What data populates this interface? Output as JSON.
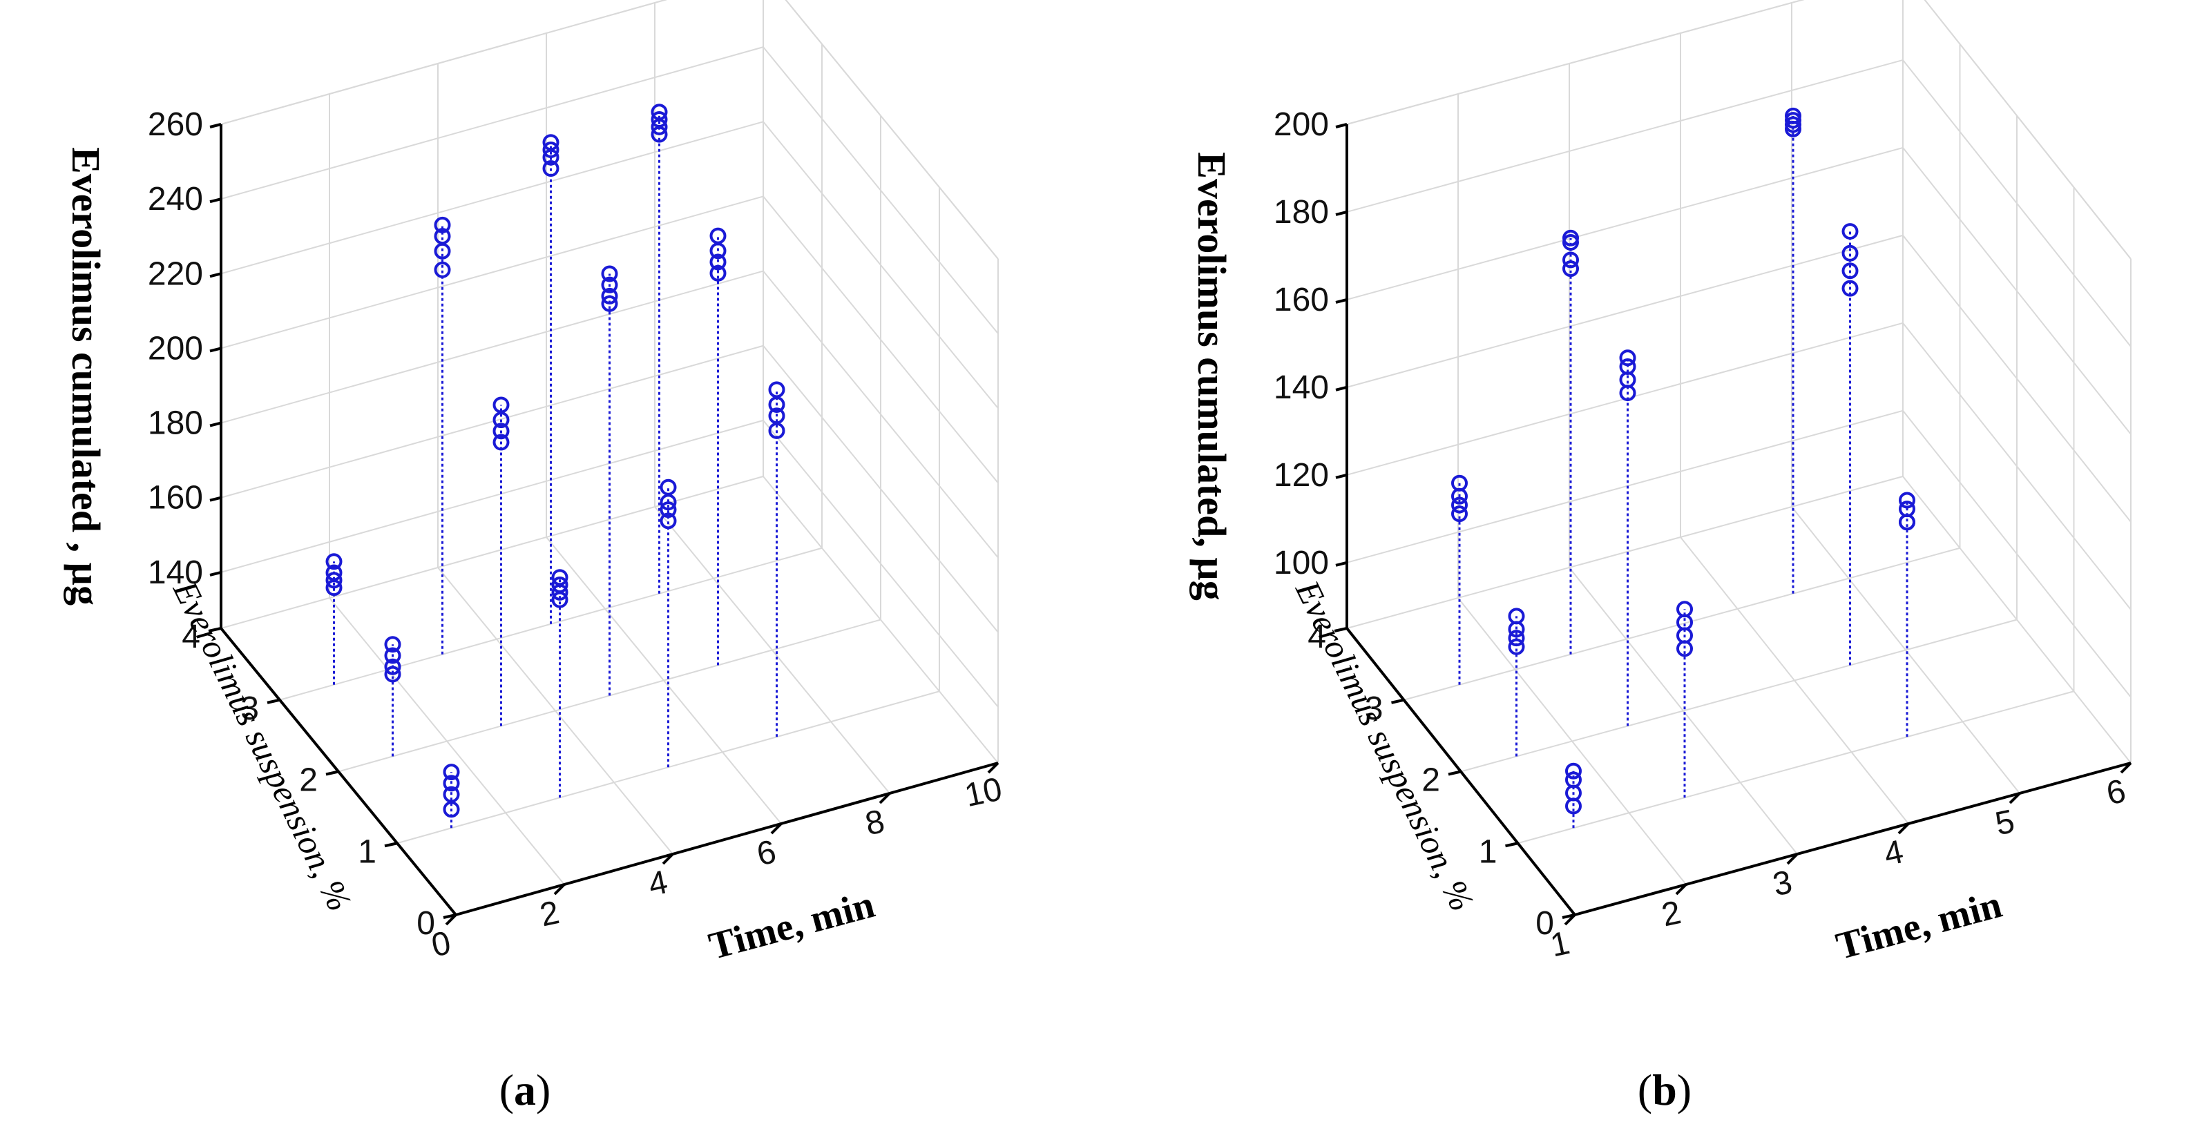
{
  "chart_data": [
    {
      "type": "scatter3d",
      "panel_label": "a",
      "zlabel": "Everolimus cumulated , µg",
      "xlabel": "Time, min",
      "ylabel": "Everolimus suspension, %",
      "x_ticks": [
        "0",
        "2",
        "4",
        "6",
        "8",
        "10"
      ],
      "y_ticks": [
        "0",
        "1",
        "2",
        "3",
        "4"
      ],
      "z_ticks": [
        "140",
        "160",
        "180",
        "200",
        "220",
        "240",
        "260"
      ],
      "xlim": [
        0,
        10
      ],
      "ylim": [
        0,
        4
      ],
      "zlim": [
        125,
        260
      ],
      "color": "#1a1ad6",
      "groups": [
        {
          "time": 1,
          "suspension": 3,
          "values": [
            151,
            153,
            155,
            158
          ]
        },
        {
          "time": 1,
          "suspension": 2,
          "values": [
            147,
            149,
            152,
            155
          ]
        },
        {
          "time": 1,
          "suspension": 1,
          "values": [
            130,
            134,
            137,
            140
          ]
        },
        {
          "time": 3,
          "suspension": 3,
          "values": [
            228,
            233,
            237,
            240
          ]
        },
        {
          "time": 3,
          "suspension": 2,
          "values": [
            201,
            204,
            207,
            211
          ]
        },
        {
          "time": 3,
          "suspension": 1,
          "values": [
            178,
            180,
            182,
            184
          ]
        },
        {
          "time": 5,
          "suspension": 3,
          "values": [
            247,
            250,
            252,
            254
          ]
        },
        {
          "time": 5,
          "suspension": 2,
          "values": [
            230,
            232,
            235,
            238
          ]
        },
        {
          "time": 5,
          "suspension": 1,
          "values": [
            191,
            194,
            196,
            200
          ]
        },
        {
          "time": 7,
          "suspension": 3,
          "values": [
            248,
            250,
            252,
            254
          ]
        },
        {
          "time": 7,
          "suspension": 2,
          "values": [
            230,
            233,
            236,
            240
          ]
        },
        {
          "time": 7,
          "suspension": 1,
          "values": [
            207,
            211,
            214,
            218
          ]
        }
      ]
    },
    {
      "type": "scatter3d",
      "panel_label": "b",
      "zlabel": "Everolimus cumulated, µg",
      "xlabel": "Time, min",
      "ylabel": "Everolimus suspension, %",
      "x_ticks": [
        "1",
        "2",
        "3",
        "4",
        "5",
        "6"
      ],
      "y_ticks": [
        "0",
        "1",
        "2",
        "3",
        "4"
      ],
      "z_ticks": [
        "100",
        "120",
        "140",
        "160",
        "180",
        "200"
      ],
      "xlim": [
        1,
        6
      ],
      "ylim": [
        0,
        4
      ],
      "zlim": [
        85,
        200
      ],
      "color": "#1a1ad6",
      "groups": [
        {
          "time": 1.5,
          "suspension": 3,
          "values": [
            124,
            126,
            128,
            131
          ]
        },
        {
          "time": 1.5,
          "suspension": 2,
          "values": [
            110,
            112,
            114,
            117
          ]
        },
        {
          "time": 1.5,
          "suspension": 1,
          "values": [
            90,
            93,
            96,
            98
          ]
        },
        {
          "time": 2.5,
          "suspension": 3,
          "values": [
            173,
            175,
            179,
            180
          ]
        },
        {
          "time": 2.5,
          "suspension": 2,
          "values": [
            161,
            164,
            167,
            169
          ]
        },
        {
          "time": 2.5,
          "suspension": 1,
          "values": [
            119,
            122,
            125,
            128
          ]
        },
        {
          "time": 4.5,
          "suspension": 3,
          "values": [
            191,
            192,
            193,
            194
          ]
        },
        {
          "time": 4.5,
          "suspension": 2,
          "values": [
            171,
            175,
            179,
            184
          ]
        },
        {
          "time": 4.5,
          "suspension": 1,
          "values": [
            134,
            134,
            137,
            139
          ]
        }
      ]
    }
  ]
}
